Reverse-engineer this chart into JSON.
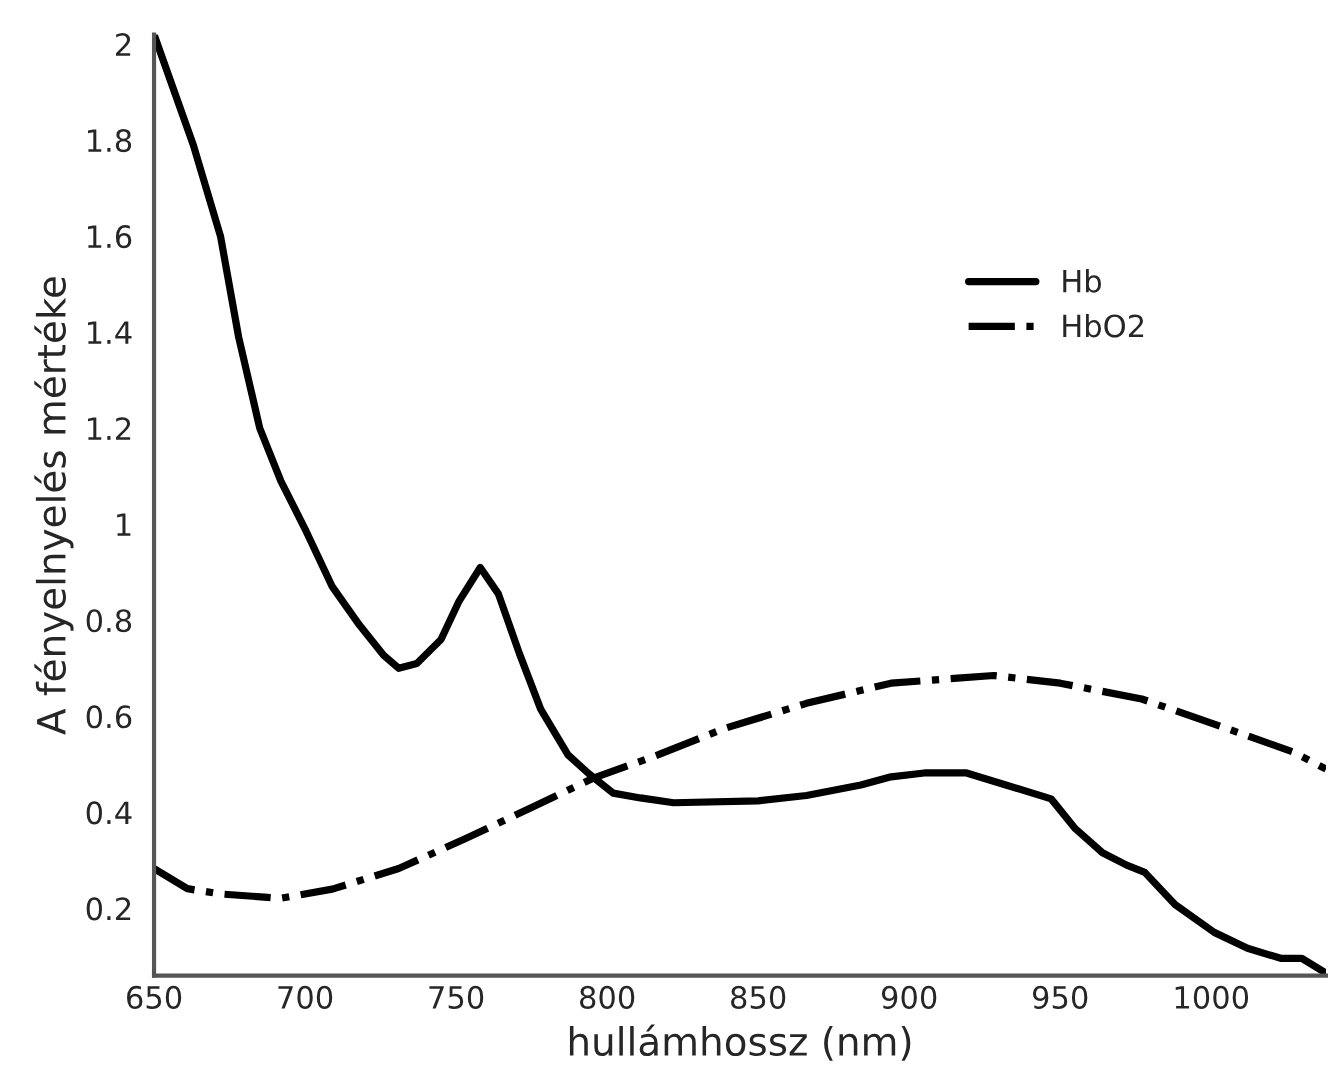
{
  "chart_data": {
    "type": "line",
    "xlabel": "hullámhossz (nm)",
    "ylabel": "A fényelnyelés mértéke",
    "xlim": [
      650,
      1038
    ],
    "ylim": [
      0.06,
      2.02
    ],
    "xticks": [
      650,
      700,
      750,
      800,
      850,
      900,
      950,
      1000
    ],
    "yticks": [
      0.2,
      0.4,
      0.6,
      0.8,
      1,
      1.2,
      1.4,
      1.6,
      1.8,
      2
    ],
    "grid": false,
    "legend": "top right",
    "marker": "none",
    "series": [
      {
        "name": "Hb",
        "color": "#000000",
        "line_style": "solid",
        "x": [
          650,
          663,
          672,
          678,
          685,
          692,
          700,
          709,
          718,
          726,
          731,
          737,
          745,
          751,
          758,
          764,
          771,
          778,
          787,
          794,
          802,
          811,
          822,
          850,
          866,
          884,
          894,
          905,
          919,
          932,
          947,
          955,
          964,
          972,
          978,
          988,
          1001,
          1012,
          1023,
          1030,
          1038
        ],
        "values": [
          2.02,
          1.79,
          1.6,
          1.39,
          1.2,
          1.09,
          0.99,
          0.87,
          0.79,
          0.727,
          0.7,
          0.71,
          0.76,
          0.84,
          0.91,
          0.855,
          0.73,
          0.615,
          0.52,
          0.48,
          0.44,
          0.43,
          0.42,
          0.424,
          0.435,
          0.457,
          0.474,
          0.482,
          0.482,
          0.457,
          0.428,
          0.366,
          0.316,
          0.29,
          0.275,
          0.208,
          0.15,
          0.117,
          0.096,
          0.096,
          0.065
        ]
      },
      {
        "name": "HbO2",
        "color": "#000000",
        "line_style": "dashdot",
        "x": [
          650,
          661,
          672,
          692,
          709,
          731,
          753,
          775,
          795,
          817,
          839,
          866,
          894,
          928,
          950,
          977,
          1005,
          1027,
          1038
        ],
        "values": [
          0.283,
          0.241,
          0.23,
          0.221,
          0.24,
          0.283,
          0.345,
          0.41,
          0.47,
          0.52,
          0.575,
          0.627,
          0.669,
          0.685,
          0.669,
          0.636,
          0.575,
          0.526,
          0.49
        ]
      }
    ]
  }
}
